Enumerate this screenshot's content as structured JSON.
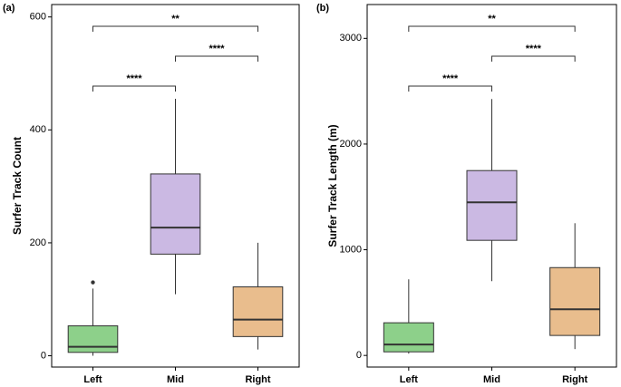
{
  "chart_data": [
    {
      "type": "box",
      "panel_label": "(a)",
      "ylabel": "Surfer Track Count",
      "categories": [
        "Left",
        "Mid",
        "Right"
      ],
      "colors": [
        "#8dd08a",
        "#cbb9e3",
        "#e9bd8d"
      ],
      "boxes": [
        {
          "min": 0,
          "q1": 6,
          "median": 16,
          "q3": 53,
          "max": 119,
          "outliers": [
            130
          ]
        },
        {
          "min": 109,
          "q1": 180,
          "median": 227,
          "q3": 322,
          "max": 455,
          "outliers": []
        },
        {
          "min": 11,
          "q1": 34,
          "median": 64,
          "q3": 122,
          "max": 200,
          "outliers": []
        }
      ],
      "ylim": [
        -20,
        622
      ],
      "yticks": [
        0,
        200,
        400,
        600
      ],
      "annotations": [
        {
          "text": "****",
          "from": "Left",
          "to": "Mid"
        },
        {
          "text": "****",
          "from": "Mid",
          "to": "Right"
        },
        {
          "text": "**",
          "from": "Left",
          "to": "Right"
        }
      ]
    },
    {
      "type": "box",
      "panel_label": "(b)",
      "ylabel": "Surfer Track Length (m)",
      "categories": [
        "Left",
        "Mid",
        "Right"
      ],
      "colors": [
        "#8dd08a",
        "#cbb9e3",
        "#e9bd8d"
      ],
      "boxes": [
        {
          "min": 17,
          "q1": 34,
          "median": 103,
          "q3": 309,
          "max": 720,
          "outliers": []
        },
        {
          "min": 703,
          "q1": 1089,
          "median": 1449,
          "q3": 1749,
          "max": 2426,
          "outliers": []
        },
        {
          "min": 60,
          "q1": 189,
          "median": 437,
          "q3": 831,
          "max": 1251,
          "outliers": []
        }
      ],
      "ylim": [
        -110,
        3320
      ],
      "yticks": [
        0,
        1000,
        2000,
        3000
      ],
      "annotations": [
        {
          "text": "****",
          "from": "Left",
          "to": "Mid"
        },
        {
          "text": "****",
          "from": "Mid",
          "to": "Right"
        },
        {
          "text": "**",
          "from": "Left",
          "to": "Right"
        }
      ]
    }
  ]
}
